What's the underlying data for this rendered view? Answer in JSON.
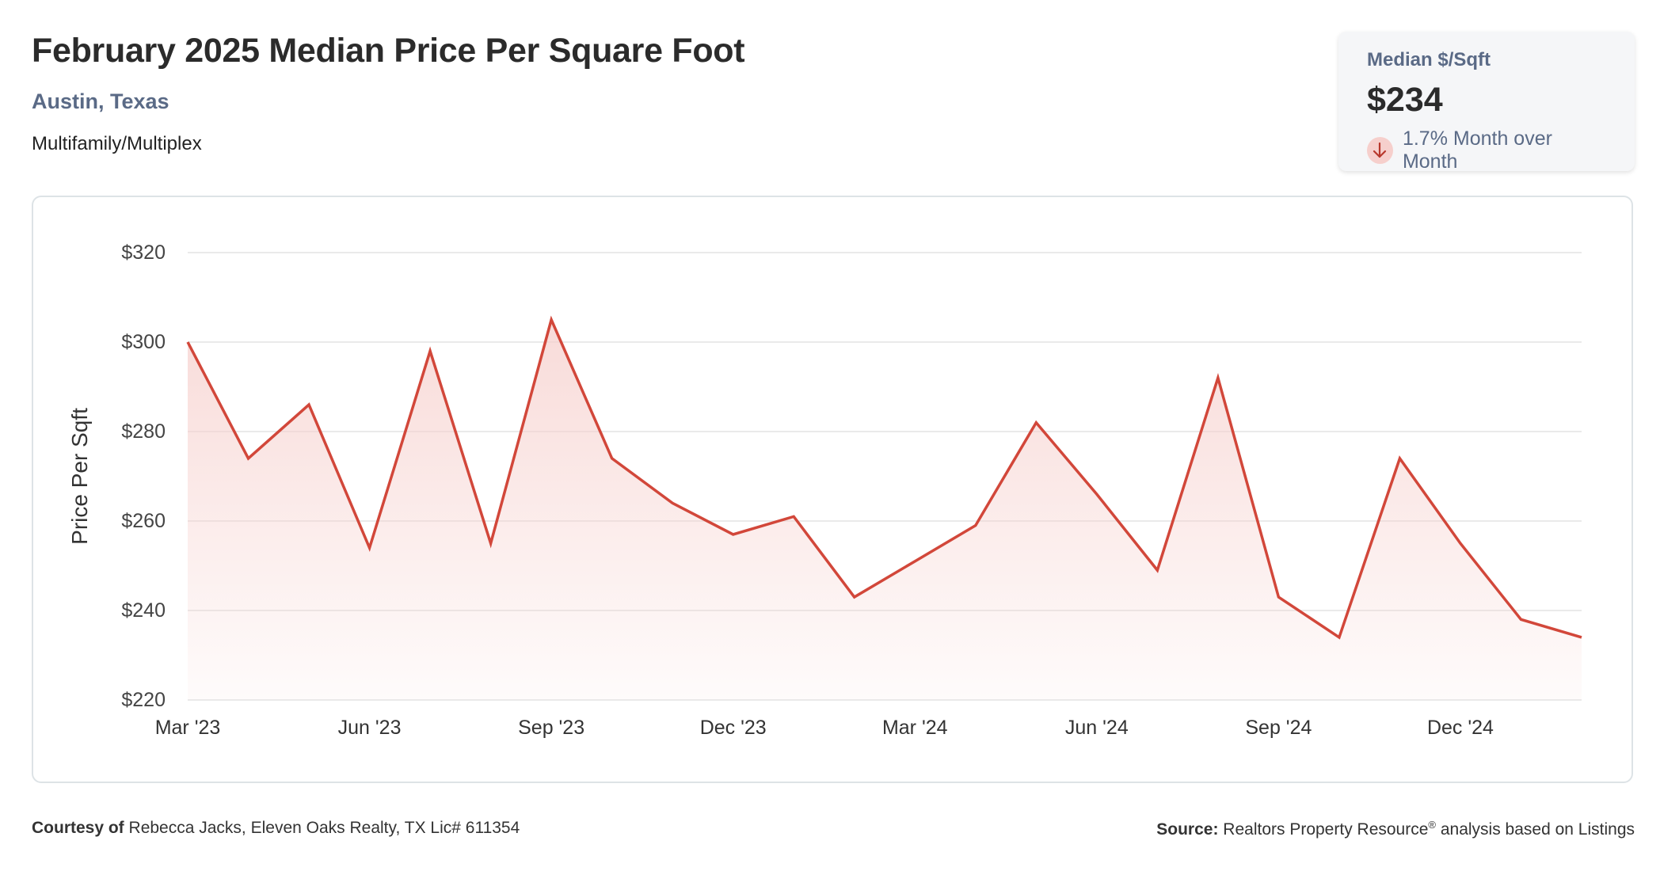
{
  "header": {
    "title": "February 2025 Median Price Per Square Foot",
    "location": "Austin, Texas",
    "property_type": "Multifamily/Multiplex"
  },
  "stat_card": {
    "label": "Median $/Sqft",
    "value": "$234",
    "change_text": "1.7% Month over Month",
    "change_direction": "down",
    "icon": "arrow-down-icon"
  },
  "colors": {
    "line": "#d2473a",
    "fill": "#f6cfcc",
    "grid": "#e3e3e3",
    "text_muted": "#5a6a86"
  },
  "chart_data": {
    "type": "area",
    "title": "",
    "xlabel": "",
    "ylabel": "Price Per Sqft",
    "ylim": [
      220,
      320
    ],
    "yticks": [
      220,
      240,
      260,
      280,
      300,
      320
    ],
    "ytick_labels": [
      "$220",
      "$240",
      "$260",
      "$280",
      "$300",
      "$320"
    ],
    "x_tick_labels": [
      "Mar '23",
      "Jun '23",
      "Sep '23",
      "Dec '23",
      "Mar '24",
      "Jun '24",
      "Sep '24",
      "Dec '24"
    ],
    "x_tick_indices": [
      0,
      3,
      6,
      9,
      12,
      15,
      18,
      21
    ],
    "grid": true,
    "categories": [
      "Mar 2023",
      "Apr 2023",
      "May 2023",
      "Jun 2023",
      "Jul 2023",
      "Aug 2023",
      "Sep 2023",
      "Oct 2023",
      "Nov 2023",
      "Dec 2023",
      "Jan 2024",
      "Feb 2024",
      "Mar 2024",
      "Apr 2024",
      "May 2024",
      "Jun 2024",
      "Jul 2024",
      "Aug 2024",
      "Sep 2024",
      "Oct 2024",
      "Nov 2024",
      "Dec 2024",
      "Jan 2025",
      "Feb 2025"
    ],
    "series": [
      {
        "values": [
          300,
          274,
          286,
          254,
          298,
          255,
          305,
          274,
          264,
          257,
          261,
          243,
          251,
          259,
          282,
          266,
          249,
          292,
          243,
          234,
          274,
          255,
          238,
          234
        ]
      }
    ]
  },
  "footer": {
    "courtesy_label": "Courtesy of",
    "courtesy_text": "Rebecca Jacks, Eleven Oaks Realty, TX Lic# 611354",
    "source_label": "Source:",
    "source_text": "Realtors Property Resource",
    "source_mark": "®",
    "source_suffix": "analysis based on Listings"
  }
}
